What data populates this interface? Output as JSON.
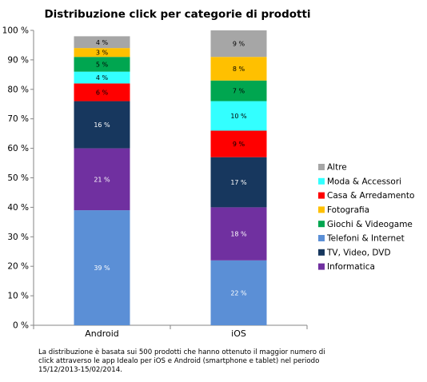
{
  "chart_data": {
    "type": "bar",
    "stacked": true,
    "title": "Distribuzione click per categorie di prodotti",
    "categories": [
      "Android",
      "iOS"
    ],
    "ylim": [
      0,
      100
    ],
    "yticks": [
      "0 %",
      "10 %",
      "20 %",
      "30 %",
      "40 %",
      "50 %",
      "60 %",
      "70 %",
      "80 %",
      "90 %",
      "100 %"
    ],
    "legend_position": "right",
    "grid": false,
    "series": [
      {
        "name": "Telefoni & Internet",
        "color": "#5b8fd6",
        "values": [
          39,
          22
        ],
        "labels": [
          "39 %",
          "22 %"
        ]
      },
      {
        "name": "Informatica",
        "color": "#7030a0",
        "values": [
          21,
          18
        ],
        "labels": [
          "21 %",
          "18 %"
        ]
      },
      {
        "name": "TV, Video, DVD",
        "color": "#17375e",
        "values": [
          16,
          17
        ],
        "labels": [
          "16 %",
          "17 %"
        ]
      },
      {
        "name": "Casa & Arredamento",
        "color": "#ff0000",
        "values": [
          6,
          9
        ],
        "labels": [
          "6 %",
          "9 %"
        ]
      },
      {
        "name": "Moda & Accessori",
        "color": "#33ffff",
        "values": [
          4,
          10
        ],
        "labels": [
          "4 %",
          "10 %"
        ]
      },
      {
        "name": "Giochi & Videogame",
        "color": "#00a650",
        "values": [
          5,
          7
        ],
        "labels": [
          "5 %",
          "7 %"
        ]
      },
      {
        "name": "Fotografia",
        "color": "#ffc000",
        "values": [
          3,
          8
        ],
        "labels": [
          "3 %",
          "8 %"
        ]
      },
      {
        "name": "Altre",
        "color": "#a6a6a6",
        "values": [
          4,
          9
        ],
        "labels": [
          "4 %",
          "9 %"
        ]
      }
    ],
    "legend_order": [
      "Altre",
      "Moda & Accessori",
      "Casa & Arredamento",
      "Fotografia",
      "Giochi & Videogame",
      "Telefoni & Internet",
      "TV, Video, DVD",
      "Informatica"
    ]
  },
  "footnote": "La distribuzione è basata sui 500 prodotti che hanno ottenuto il maggior numero di click attraverso le app Idealo per iOS e Android (smartphone e tablet) nel periodo 15/12/2013-15/02/2014."
}
